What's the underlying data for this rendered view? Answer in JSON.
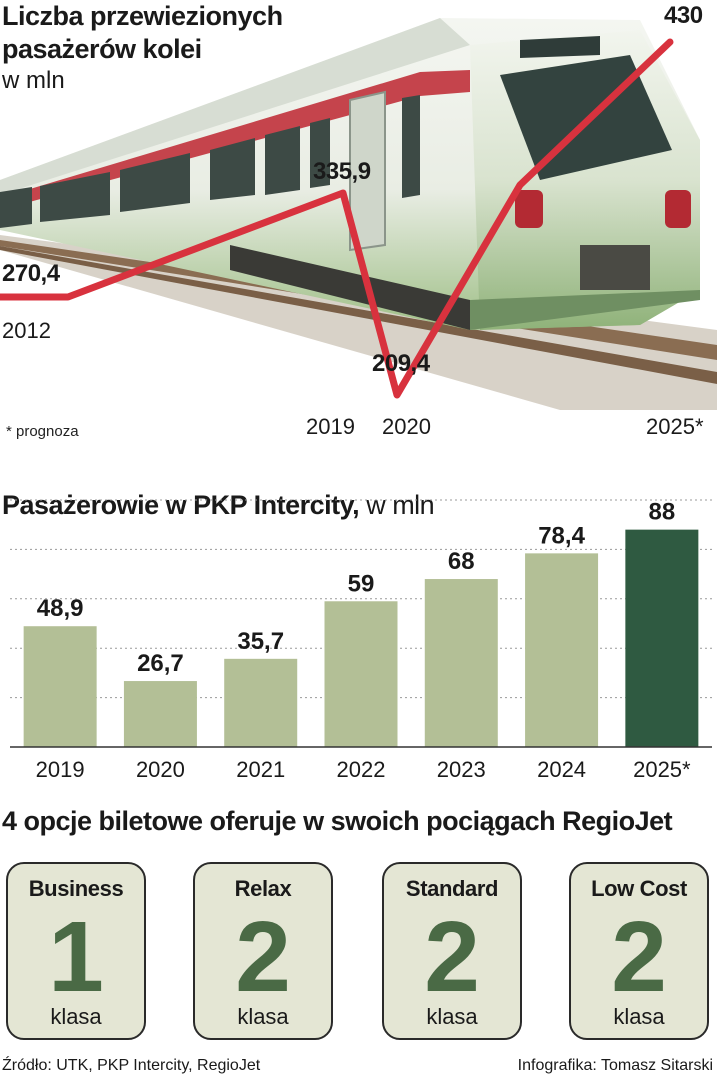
{
  "colors": {
    "line": "#d8323e",
    "bar": "#b3bf96",
    "bar_highlight": "#2f5a41",
    "card_bg": "#e4e6d4",
    "card_num": "#4a6a45"
  },
  "chart_data": [
    {
      "type": "line",
      "title": "Liczba przewiezionych pasażerów kolei",
      "subtitle": "w mln",
      "note": "* prognoza",
      "points": [
        {
          "x": "2012",
          "y": 270.4,
          "label": "270,4"
        },
        {
          "x": "2019",
          "y": 335.9,
          "label": "335,9"
        },
        {
          "x": "2020",
          "y": 209.4,
          "label": "209,4"
        },
        {
          "x": "2025*",
          "y": 430,
          "label": "430"
        }
      ]
    },
    {
      "type": "bar",
      "title": "Pasażerowie w PKP Intercity,",
      "subtitle": "w mln",
      "categories": [
        "2019",
        "2020",
        "2021",
        "2022",
        "2023",
        "2024",
        "2025*"
      ],
      "values": [
        48.9,
        26.7,
        35.7,
        59,
        68,
        78.4,
        88
      ],
      "value_labels": [
        "48,9",
        "26,7",
        "35,7",
        "59",
        "68",
        "78,4",
        "88"
      ],
      "ylim": [
        0,
        100
      ],
      "grid": true
    }
  ],
  "tickets": {
    "title": "4 opcje biletowe oferuje w swoich pociągach RegioJet",
    "items": [
      {
        "name": "Business",
        "number": "1",
        "unit": "klasa"
      },
      {
        "name": "Relax",
        "number": "2",
        "unit": "klasa"
      },
      {
        "name": "Standard",
        "number": "2",
        "unit": "klasa"
      },
      {
        "name": "Low Cost",
        "number": "2",
        "unit": "klasa"
      }
    ]
  },
  "footer": {
    "source": "Źródło: UTK, PKP Intercity, RegioJet",
    "credit": "Infografika: Tomasz Sitarski"
  }
}
